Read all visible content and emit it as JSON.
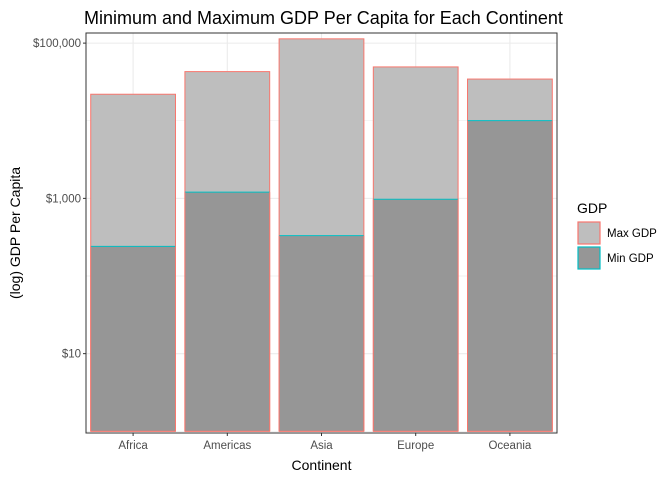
{
  "chart_data": {
    "type": "bar",
    "title": "Minimum and Maximum GDP Per Capita for Each Continent",
    "xlabel": "Continent",
    "ylabel": "(log) GDP Per Capita",
    "y_scale": "log10",
    "ylim": [
      0.95,
      135000
    ],
    "y_ticks": [
      {
        "value": 10,
        "label": "$10"
      },
      {
        "value": 1000,
        "label": "$1,000"
      },
      {
        "value": 100000,
        "label": "$100,000"
      }
    ],
    "grid": true,
    "categories": [
      "Africa",
      "Americas",
      "Asia",
      "Europe",
      "Oceania"
    ],
    "series": [
      {
        "name": "Max GDP",
        "values": [
          21951,
          42952,
          113523,
          49357,
          34435
        ],
        "fill": "#bebebe",
        "outline": "#f8766d"
      },
      {
        "name": "Min GDP",
        "values": [
          241,
          1202,
          331,
          974,
          10040
        ],
        "fill": "#969696",
        "outline": "#00bfc4"
      }
    ],
    "legend": {
      "title": "GDP",
      "position": "right",
      "entries": [
        "Max GDP",
        "Min GDP"
      ]
    }
  }
}
